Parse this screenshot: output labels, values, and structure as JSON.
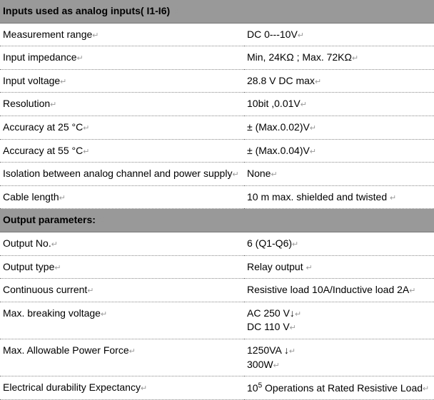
{
  "section1": {
    "title": "Inputs used as analog inputs( I1-I6)",
    "rows": [
      {
        "label": "Measurement range",
        "value": "DC 0---10V"
      },
      {
        "label": "Input impedance",
        "value": "Min, 24KΩ ; Max.  72KΩ"
      },
      {
        "label": "Input voltage",
        "value": "28.8 V DC max"
      },
      {
        "label": "Resolution",
        "value": "10bit ,0.01V"
      },
      {
        "label": "Accuracy at 25 °C",
        "value": "± (Max.0.02)V"
      },
      {
        "label": "Accuracy at 55 °C",
        "value": "± (Max.0.04)V"
      },
      {
        "label": "Isolation between analog channel and power supply",
        "value": "None"
      },
      {
        "label": "Cable length",
        "value": "10 m max.   shielded and twisted "
      }
    ]
  },
  "section2": {
    "title": "Output parameters:",
    "rows": [
      {
        "label": "Output No.",
        "value": "6 (Q1-Q6)"
      },
      {
        "label": "Output type",
        "value": "Relay output "
      },
      {
        "label": "Continuous current",
        "value": "Resistive load 10A/Inductive load 2A"
      },
      {
        "label": "Max. breaking voltage",
        "value": "AC 250 V↓",
        "value2": "DC 110 V"
      },
      {
        "label": "Max. Allowable Power Force",
        "value": "1250VA ↓",
        "value2": "300W"
      },
      {
        "label": "Electrical durability Expectancy",
        "value_html": "10<sup>5</sup> Operations at Rated Resistive Load"
      }
    ]
  },
  "returnMark": "↵"
}
